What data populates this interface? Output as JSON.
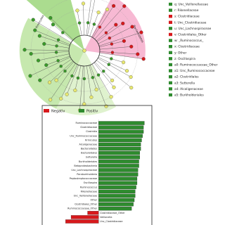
{
  "cladogram": {
    "legend": [
      {
        "label": "q: Unc_Veillonellaceae",
        "color": "#2e8b2e"
      },
      {
        "label": "r: Rikenellaceae",
        "color": "#2e8b2e"
      },
      {
        "label": "s: Clostridiaceae",
        "color": "#d7191c"
      },
      {
        "label": "t: Unc_Clostridiaceae",
        "color": "#d7191c"
      },
      {
        "label": "u: Unc_Lachnospiraceae",
        "color": "#2e8b2e"
      },
      {
        "label": "v: Clostridiales_Other",
        "color": "#d7191c"
      },
      {
        "label": "w: _Ruminococcus_",
        "color": "#2e8b2e"
      },
      {
        "label": "x: Clostridiaceae",
        "color": "#2e8b2e"
      },
      {
        "label": "y: Other",
        "color": "#2e8b2e"
      },
      {
        "label": "z: Oscillospira",
        "color": "#2e8b2e"
      },
      {
        "label": "a0: Ruminococcaceae_Other",
        "color": "#2e8b2e"
      },
      {
        "label": "a1: Unc_Ruminococcaceae",
        "color": "#2e8b2e"
      },
      {
        "label": "a2: Clostridiales",
        "color": "#2e8b2e"
      },
      {
        "label": "a3: Sutterella",
        "color": "#2e8b2e"
      },
      {
        "label": "a4: Alcaligenaceae",
        "color": "#2e8b2e"
      },
      {
        "label": "a5: Burkholderiales",
        "color": "#2e8b2e"
      }
    ],
    "clade_labels": [
      "Firmicutes",
      "Bacteroidetes"
    ]
  },
  "chart_data": {
    "type": "bar",
    "orientation": "horizontal",
    "categories": [
      "Ruminococcaceae",
      "Clostridiaceae",
      "Clostridia",
      "Unc_Ruminococcaceae",
      "Firmicutes",
      "Alcaligenaceae",
      "Bacteroidetes",
      "Bacteroidales",
      "Sutterella",
      "Burkholderiales",
      "Betaproteobacteria",
      "Unc_Lachnospiraceae",
      "Paraburkholderia",
      "Peptostreptococcaceae",
      "Oscillospira",
      "Ruminococcus",
      "Rikenellaceae",
      "Unc_Veillonellaceae",
      "Other",
      "Clostridiales_Other",
      "Ruminococcaceae_Other",
      "Clostridiaceae_Other",
      "Veillonella",
      "Unc_Clostridiaceae"
    ],
    "series": [
      {
        "name": "Negativ",
        "color": "#d7191c",
        "values": [
          null,
          null,
          null,
          null,
          null,
          null,
          null,
          null,
          null,
          null,
          null,
          null,
          null,
          null,
          null,
          null,
          null,
          null,
          null,
          null,
          null,
          -1.2,
          -3.0,
          -3.6
        ]
      },
      {
        "name": "Positiv",
        "color": "#2e8b2e",
        "values": [
          5.0,
          4.9,
          4.9,
          4.8,
          4.7,
          4.6,
          4.6,
          4.5,
          4.5,
          4.4,
          4.4,
          4.3,
          4.3,
          4.2,
          4.2,
          4.1,
          4.0,
          4.0,
          3.9,
          3.8,
          3.6,
          null,
          null,
          null
        ]
      }
    ],
    "xlim": [
      -4,
      5.2
    ]
  }
}
